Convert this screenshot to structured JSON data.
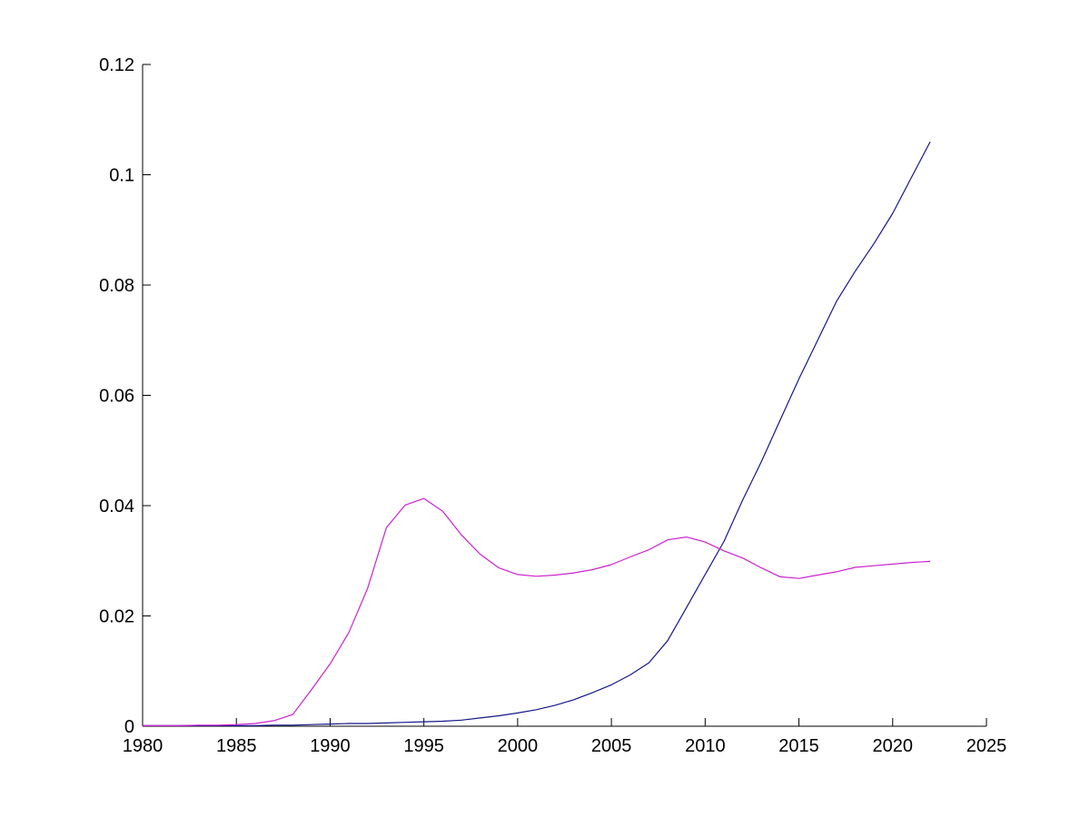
{
  "page": {
    "background": "#ffffff"
  },
  "chart_data": {
    "type": "line",
    "title": "",
    "xlabel": "",
    "ylabel": "",
    "xlim": [
      1980,
      2025
    ],
    "ylim": [
      0,
      0.12
    ],
    "grid": false,
    "legend_position": "none",
    "box": false,
    "axis_color": "#000000",
    "x": [
      1980,
      1981,
      1982,
      1983,
      1984,
      1985,
      1986,
      1987,
      1988,
      1989,
      1990,
      1991,
      1992,
      1993,
      1994,
      1995,
      1996,
      1997,
      1998,
      1999,
      2000,
      2001,
      2002,
      2003,
      2004,
      2005,
      2006,
      2007,
      2008,
      2009,
      2010,
      2011,
      2012,
      2013,
      2014,
      2015,
      2016,
      2017,
      2018,
      2019,
      2020,
      2021,
      2022
    ],
    "series": [
      {
        "name": "series-blue",
        "color": "#16168C",
        "values": [
          0.0001,
          0.0001,
          0.0001,
          0.0001,
          0.0001,
          0.0001,
          0.0001,
          0.0002,
          0.0002,
          0.0003,
          0.0004,
          0.0005,
          0.0005,
          0.0006,
          0.0007,
          0.0008,
          0.0009,
          0.0011,
          0.0015,
          0.0019,
          0.0024,
          0.003,
          0.0038,
          0.0048,
          0.0061,
          0.0075,
          0.0093,
          0.0115,
          0.0155,
          0.0215,
          0.0275,
          0.0335,
          0.041,
          0.048,
          0.0555,
          0.063,
          0.07,
          0.077,
          0.0825,
          0.0875,
          0.093,
          0.0995,
          0.106
        ]
      },
      {
        "name": "series-magenta",
        "color": "#CC22CC",
        "values": [
          0.0001,
          0.0001,
          0.0001,
          0.0002,
          0.0002,
          0.0003,
          0.0005,
          0.001,
          0.0021,
          0.0066,
          0.0113,
          0.017,
          0.025,
          0.036,
          0.0401,
          0.0413,
          0.039,
          0.0347,
          0.0312,
          0.0287,
          0.0275,
          0.0272,
          0.0274,
          0.0278,
          0.0284,
          0.0293,
          0.0307,
          0.032,
          0.0338,
          0.0343,
          0.0334,
          0.0318,
          0.0305,
          0.0287,
          0.0271,
          0.0268,
          0.0274,
          0.028,
          0.0288,
          0.0291,
          0.0294,
          0.0297,
          0.0299
        ]
      }
    ],
    "xticks": {
      "values": [
        1980,
        1985,
        1990,
        1995,
        2000,
        2005,
        2010,
        2015,
        2020,
        2025
      ],
      "labels": [
        "1980",
        "1985",
        "1990",
        "1995",
        "2000",
        "2005",
        "2010",
        "2015",
        "2020",
        "2025"
      ]
    },
    "yticks": {
      "values": [
        0,
        0.02,
        0.04,
        0.06,
        0.08,
        0.1,
        0.12
      ],
      "labels": [
        "0",
        "0.02",
        "0.04",
        "0.06",
        "0.08",
        "0.1",
        "0.12"
      ]
    }
  }
}
